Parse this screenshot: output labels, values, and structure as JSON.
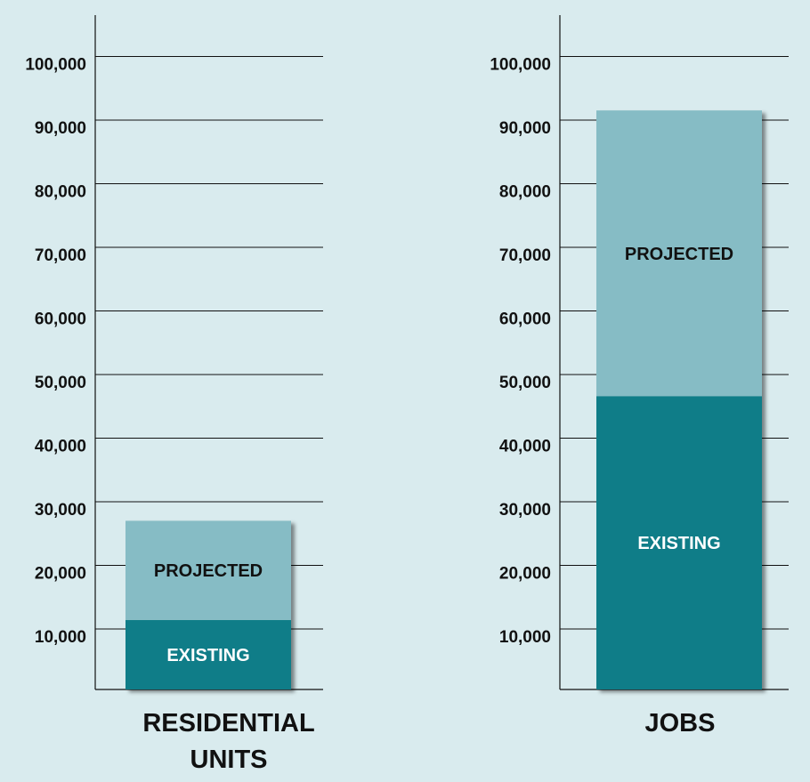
{
  "colors": {
    "background": "#d9ebee",
    "existing": "#0f7d88",
    "projected": "#86bcc5",
    "grid": "#111111"
  },
  "chart_data": [
    {
      "type": "bar",
      "stacked": true,
      "categories": [
        "RESIDENTIAL UNITS"
      ],
      "category_lines": [
        "RESIDENTIAL",
        "UNITS"
      ],
      "series": [
        {
          "name": "EXISTING",
          "values": [
            11400
          ]
        },
        {
          "name": "PROJECTED",
          "values": [
            15600
          ]
        }
      ],
      "ylim": [
        0,
        100000
      ],
      "yticks": [
        "10,000",
        "20,000",
        "30,000",
        "40,000",
        "50,000",
        "60,000",
        "70,000",
        "80,000",
        "90,000",
        "100,000"
      ],
      "grid": true
    },
    {
      "type": "bar",
      "stacked": true,
      "categories": [
        "JOBS"
      ],
      "category_lines": [
        "JOBS"
      ],
      "series": [
        {
          "name": "EXISTING",
          "values": [
            46600
          ]
        },
        {
          "name": "PROJECTED",
          "values": [
            44900
          ]
        }
      ],
      "ylim": [
        0,
        100000
      ],
      "yticks": [
        "10,000",
        "20,000",
        "30,000",
        "40,000",
        "50,000",
        "60,000",
        "70,000",
        "80,000",
        "90,000",
        "100,000"
      ],
      "grid": true
    }
  ]
}
